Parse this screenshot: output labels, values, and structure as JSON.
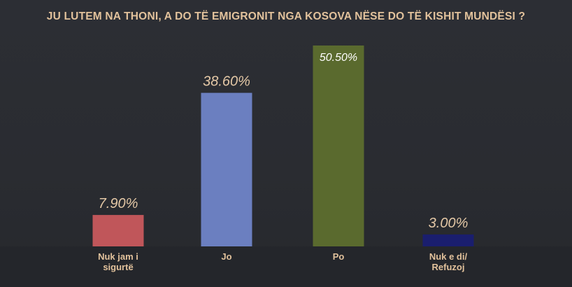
{
  "chart_data": {
    "type": "bar",
    "title": "JU LUTEM NA THONI, A DO TË EMIGRONIT NGA KOSOVA NËSE DO TË KISHIT MUNDËSI ?",
    "categories": [
      [
        "Nuk jam i",
        "sigurtë"
      ],
      [
        "Jo"
      ],
      [
        "Po"
      ],
      [
        "Nuk e di/",
        "Refuzoj"
      ]
    ],
    "values": [
      7.9,
      38.6,
      50.5,
      3.0
    ],
    "value_labels": [
      "7.90%",
      "38.60%",
      "50.50%",
      "3.00%"
    ],
    "colors": [
      "#c0565a",
      "#6b7fc0",
      "#5a6a2e",
      "#1a1e6e"
    ],
    "ylim": [
      0,
      50.5
    ],
    "grid": false,
    "legend": "none"
  }
}
